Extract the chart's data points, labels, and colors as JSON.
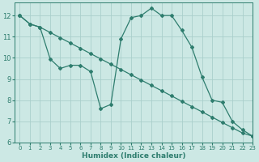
{
  "line1_x": [
    0,
    1,
    2,
    3,
    4,
    5,
    6,
    7,
    8,
    9,
    10,
    11,
    12,
    13,
    14,
    15,
    16,
    17,
    18,
    19,
    20,
    21,
    22,
    23
  ],
  "line1_y": [
    12.0,
    11.6,
    11.45,
    11.2,
    10.95,
    10.7,
    10.45,
    10.2,
    9.95,
    9.7,
    9.45,
    9.2,
    8.95,
    8.7,
    8.45,
    8.2,
    7.95,
    7.7,
    7.45,
    7.2,
    6.95,
    6.7,
    6.45,
    6.3
  ],
  "line2_x": [
    0,
    1,
    2,
    3,
    4,
    5,
    6,
    7,
    8,
    9,
    10,
    11,
    12,
    13,
    14,
    15,
    16,
    17,
    18,
    19,
    20,
    21,
    22,
    23
  ],
  "line2_y": [
    12.0,
    11.6,
    11.45,
    9.95,
    9.5,
    9.65,
    9.65,
    9.35,
    7.6,
    7.8,
    10.9,
    11.9,
    12.0,
    12.35,
    12.0,
    12.0,
    11.3,
    10.5,
    9.1,
    8.0,
    7.9,
    7.0,
    6.6,
    6.3
  ],
  "color": "#2e7d6e",
  "bg_color": "#cce8e4",
  "grid_color": "#aacfcc",
  "xlabel": "Humidex (Indice chaleur)",
  "ylim": [
    6,
    12.6
  ],
  "xlim": [
    -0.5,
    23
  ],
  "yticks": [
    6,
    7,
    8,
    9,
    10,
    11,
    12
  ],
  "xticks": [
    0,
    1,
    2,
    3,
    4,
    5,
    6,
    7,
    8,
    9,
    10,
    11,
    12,
    13,
    14,
    15,
    16,
    17,
    18,
    19,
    20,
    21,
    22,
    23
  ],
  "marker": "D",
  "markersize": 2.0,
  "linewidth": 0.9
}
